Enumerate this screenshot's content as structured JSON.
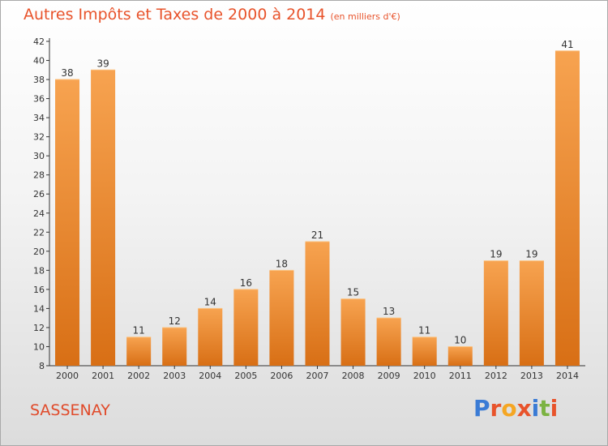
{
  "title": "Autres Impôts et Taxes de 2000 à 2014",
  "subtitle": "(en milliers d'€)",
  "commune": "SASSENAY",
  "brand": "Proxiti",
  "colors": {
    "title": "#e8532b",
    "bar_top": "#f7a350",
    "bar_bottom": "#d86f15",
    "axis": "#333333",
    "grid": "#bfbfbf",
    "logo": [
      "#3a7bd5",
      "#e8532b",
      "#f5a623",
      "#e8532b",
      "#3a7bd5",
      "#7cb342",
      "#e8532b"
    ]
  },
  "chart_data": {
    "type": "bar",
    "title": "Autres Impôts et Taxes de 2000 à 2014",
    "subtitle": "(en milliers d'€)",
    "categories": [
      "2000",
      "2001",
      "2002",
      "2003",
      "2004",
      "2005",
      "2006",
      "2007",
      "2008",
      "2009",
      "2010",
      "2011",
      "2012",
      "2013",
      "2014"
    ],
    "values": [
      38,
      39,
      11,
      12,
      14,
      16,
      18,
      21,
      15,
      13,
      11,
      10,
      19,
      19,
      41
    ],
    "yticks": [
      "8",
      "10",
      "12",
      "14",
      "16",
      "18",
      "20",
      "22",
      "24",
      "26",
      "28",
      "30",
      "32",
      "34",
      "36",
      "38",
      "40",
      "42"
    ],
    "ylim": [
      8,
      42
    ],
    "grid": false,
    "legend": "none"
  }
}
